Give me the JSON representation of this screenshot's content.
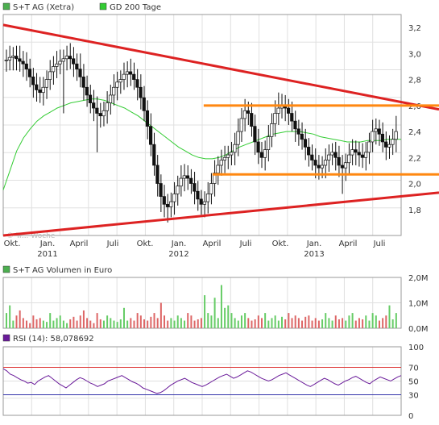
{
  "chart_data": [
    {
      "type": "candlestick",
      "legend": [
        {
          "label": "S+T AG (Xetra)",
          "color": "#4caf50"
        },
        {
          "label": "GD 200 Tage",
          "color": "#33cc33"
        }
      ],
      "watermark": "© Tr... Woche",
      "y_ticks": [
        "3,2",
        "3,0",
        "2,8",
        "2,6",
        "2,4",
        "2,2",
        "2,0",
        "1,8"
      ],
      "ylim": [
        1.6,
        3.3
      ],
      "x_ticks": [
        {
          "label": "Okt.",
          "sub": ""
        },
        {
          "label": "Jan.",
          "sub": "2011"
        },
        {
          "label": "April",
          "sub": ""
        },
        {
          "label": "Juli",
          "sub": ""
        },
        {
          "label": "Okt.",
          "sub": ""
        },
        {
          "label": "Jan.",
          "sub": "2012"
        },
        {
          "label": "April",
          "sub": ""
        },
        {
          "label": "Juli",
          "sub": ""
        },
        {
          "label": "Okt.",
          "sub": ""
        },
        {
          "label": "Jan.",
          "sub": "2013"
        },
        {
          "label": "April",
          "sub": ""
        },
        {
          "label": "Juli",
          "sub": ""
        }
      ],
      "price_close": [
        2.95,
        2.97,
        2.98,
        2.96,
        2.94,
        2.92,
        2.88,
        2.82,
        2.76,
        2.72,
        2.7,
        2.74,
        2.8,
        2.86,
        2.9,
        2.92,
        2.94,
        2.96,
        2.98,
        2.96,
        2.92,
        2.88,
        2.82,
        2.74,
        2.68,
        2.62,
        2.58,
        2.54,
        2.52,
        2.56,
        2.62,
        2.68,
        2.74,
        2.78,
        2.8,
        2.84,
        2.86,
        2.84,
        2.8,
        2.74,
        2.66,
        2.56,
        2.44,
        2.3,
        2.14,
        2.0,
        1.9,
        1.84,
        1.82,
        1.86,
        1.92,
        1.98,
        2.04,
        2.06,
        2.04,
        2.0,
        1.94,
        1.88,
        1.84,
        1.86,
        1.92,
        2.0,
        2.08,
        2.14,
        2.18,
        2.2,
        2.22,
        2.24,
        2.3,
        2.4,
        2.5,
        2.56,
        2.54,
        2.44,
        2.32,
        2.24,
        2.2,
        2.26,
        2.36,
        2.46,
        2.54,
        2.58,
        2.6,
        2.58,
        2.54,
        2.48,
        2.42,
        2.38,
        2.34,
        2.28,
        2.22,
        2.18,
        2.14,
        2.12,
        2.14,
        2.18,
        2.22,
        2.24,
        2.2,
        2.14,
        2.12,
        2.16,
        2.22,
        2.26,
        2.24,
        2.22,
        2.2,
        2.24,
        2.32,
        2.4,
        2.42,
        2.38,
        2.32,
        2.28,
        2.3,
        2.34,
        2.4
      ],
      "price_high_offset": [
        0.08,
        0.09,
        0.07,
        0.08,
        0.1,
        0.08,
        0.09,
        0.08,
        0.07,
        0.09,
        0.1,
        0.08,
        0.07,
        0.09,
        0.08,
        0.1,
        0.09,
        0.07,
        0.08,
        0.1,
        0.09,
        0.08,
        0.12,
        0.1,
        0.09,
        0.08,
        0.1,
        0.09,
        0.08,
        0.07,
        0.09,
        0.08,
        0.1,
        0.08,
        0.07,
        0.09,
        0.08,
        0.1,
        0.09,
        0.08,
        0.1,
        0.09,
        0.08,
        0.1,
        0.09,
        0.08,
        0.07,
        0.09,
        0.08,
        0.07,
        0.09,
        0.08,
        0.1,
        0.09,
        0.08,
        0.07,
        0.09,
        0.08,
        0.07,
        0.08,
        0.09,
        0.08,
        0.1,
        0.07,
        0.08,
        0.09,
        0.07,
        0.08,
        0.09,
        0.1,
        0.08,
        0.09,
        0.07,
        0.08,
        0.09,
        0.1,
        0.08,
        0.07,
        0.09,
        0.08,
        0.1,
        0.12,
        0.09,
        0.08,
        0.07,
        0.09,
        0.08,
        0.07,
        0.09,
        0.08,
        0.07,
        0.08,
        0.09,
        0.08,
        0.07,
        0.09,
        0.08,
        0.07,
        0.08,
        0.09,
        0.08,
        0.07,
        0.09,
        0.08,
        0.07,
        0.08,
        0.09,
        0.08,
        0.07,
        0.09,
        0.08,
        0.07,
        0.09,
        0.08,
        0.07,
        0.08,
        0.12
      ],
      "price_low_offset": [
        0.09,
        0.08,
        0.1,
        0.09,
        0.08,
        0.1,
        0.09,
        0.08,
        0.1,
        0.09,
        0.08,
        0.1,
        0.09,
        0.08,
        0.1,
        0.09,
        0.08,
        0.4,
        0.09,
        0.08,
        0.1,
        0.09,
        0.08,
        0.1,
        0.09,
        0.08,
        0.1,
        0.3,
        0.09,
        0.08,
        0.1,
        0.09,
        0.08,
        0.1,
        0.09,
        0.08,
        0.1,
        0.09,
        0.08,
        0.1,
        0.09,
        0.08,
        0.1,
        0.09,
        0.08,
        0.1,
        0.12,
        0.1,
        0.12,
        0.08,
        0.1,
        0.09,
        0.08,
        0.1,
        0.09,
        0.08,
        0.1,
        0.09,
        0.08,
        0.1,
        0.09,
        0.08,
        0.1,
        0.09,
        0.08,
        0.1,
        0.09,
        0.08,
        0.1,
        0.09,
        0.08,
        0.1,
        0.09,
        0.08,
        0.1,
        0.09,
        0.08,
        0.1,
        0.09,
        0.08,
        0.1,
        0.09,
        0.08,
        0.1,
        0.09,
        0.08,
        0.1,
        0.09,
        0.08,
        0.1,
        0.09,
        0.08,
        0.1,
        0.09,
        0.08,
        0.1,
        0.09,
        0.08,
        0.1,
        0.09,
        0.2,
        0.1,
        0.09,
        0.08,
        0.1,
        0.09,
        0.08,
        0.1,
        0.09,
        0.08,
        0.1,
        0.09,
        0.08,
        0.1,
        0.09,
        0.08,
        0.1
      ],
      "gd200": [
        1.95,
        2.1,
        2.25,
        2.35,
        2.42,
        2.48,
        2.52,
        2.55,
        2.58,
        2.6,
        2.62,
        2.63,
        2.64,
        2.65,
        2.65,
        2.64,
        2.62,
        2.6,
        2.58,
        2.55,
        2.52,
        2.48,
        2.44,
        2.4,
        2.36,
        2.32,
        2.28,
        2.25,
        2.22,
        2.2,
        2.19,
        2.19,
        2.2,
        2.22,
        2.25,
        2.28,
        2.3,
        2.32,
        2.34,
        2.36,
        2.38,
        2.39,
        2.4,
        2.4,
        2.4,
        2.39,
        2.38,
        2.36,
        2.35,
        2.34,
        2.33,
        2.32,
        2.32,
        2.32,
        2.33,
        2.33,
        2.33,
        2.34,
        2.34,
        2.34
      ],
      "trendlines": [
        {
          "color": "#dd2222",
          "from": [
            0,
            3.22
          ],
          "to": [
            1,
            2.57
          ]
        },
        {
          "color": "#dd2222",
          "from": [
            0,
            1.6
          ],
          "to": [
            1,
            1.93
          ]
        },
        {
          "color": "#ff8811",
          "from": [
            0.46,
            2.6
          ],
          "to": [
            1,
            2.6
          ]
        },
        {
          "color": "#ff8811",
          "from": [
            0.48,
            2.07
          ],
          "to": [
            1,
            2.07
          ]
        }
      ]
    },
    {
      "type": "bar",
      "legend": [
        {
          "label": "S+T AG Volumen in Euro",
          "color": "#4caf50"
        }
      ],
      "y_ticks": [
        "2,0M",
        "1,0M",
        "0,0M"
      ],
      "ylim": [
        0,
        2.0
      ],
      "values": [
        0.6,
        0.9,
        0.3,
        0.5,
        0.7,
        0.4,
        0.3,
        0.2,
        0.5,
        0.35,
        0.4,
        0.3,
        0.25,
        0.6,
        0.3,
        0.4,
        0.5,
        0.3,
        0.2,
        0.35,
        0.45,
        0.3,
        0.5,
        0.7,
        0.4,
        0.3,
        0.2,
        0.6,
        0.35,
        0.3,
        0.5,
        0.4,
        0.3,
        0.25,
        0.35,
        0.8,
        0.3,
        0.4,
        0.3,
        0.6,
        0.5,
        0.35,
        0.3,
        0.45,
        0.6,
        0.4,
        1.0,
        0.5,
        0.3,
        0.4,
        0.3,
        0.5,
        0.4,
        0.3,
        0.6,
        0.5,
        0.3,
        0.35,
        0.4,
        1.3,
        0.6,
        0.5,
        1.2,
        0.4,
        1.7,
        0.8,
        0.9,
        0.6,
        0.4,
        0.3,
        0.5,
        0.6,
        0.4,
        0.3,
        0.35,
        0.5,
        0.4,
        0.6,
        0.3,
        0.4,
        0.5,
        0.3,
        0.45,
        0.35,
        0.6,
        0.4,
        0.5,
        0.4,
        0.3,
        0.45,
        0.5,
        0.3,
        0.4,
        0.3,
        0.35,
        0.6,
        0.4,
        0.3,
        0.5,
        0.35,
        0.4,
        0.3,
        0.5,
        0.6,
        0.3,
        0.4,
        0.35,
        0.5,
        0.3,
        0.6,
        0.5,
        0.3,
        0.4,
        0.5,
        0.9,
        0.35,
        0.6
      ],
      "colors_up": "#66cc66",
      "colors_down": "#dd6666"
    },
    {
      "type": "line",
      "legend": [
        {
          "label": "RSI (14): 58,078692",
          "color": "#6a1b9a"
        }
      ],
      "y_ticks": [
        "100",
        "70",
        "50",
        "30",
        "0"
      ],
      "ylim": [
        0,
        100
      ],
      "ref_lines": [
        {
          "value": 70,
          "color": "#dd3333"
        },
        {
          "value": 30,
          "color": "#3333aa"
        }
      ],
      "values": [
        68,
        65,
        60,
        58,
        55,
        52,
        50,
        47,
        48,
        45,
        50,
        53,
        56,
        58,
        54,
        50,
        46,
        43,
        40,
        44,
        48,
        52,
        55,
        53,
        50,
        47,
        45,
        42,
        44,
        46,
        50,
        52,
        54,
        56,
        58,
        55,
        52,
        49,
        47,
        44,
        40,
        38,
        36,
        34,
        32,
        33,
        36,
        40,
        44,
        47,
        50,
        52,
        54,
        51,
        48,
        46,
        44,
        42,
        44,
        47,
        50,
        53,
        56,
        58,
        60,
        57,
        54,
        56,
        59,
        62,
        65,
        63,
        60,
        57,
        54,
        52,
        50,
        52,
        55,
        58,
        60,
        62,
        59,
        56,
        53,
        50,
        47,
        44,
        42,
        45,
        48,
        51,
        54,
        52,
        49,
        46,
        44,
        47,
        50,
        52,
        55,
        57,
        54,
        51,
        48,
        46,
        50,
        53,
        56,
        54,
        52,
        50,
        53,
        56,
        58
      ]
    }
  ]
}
